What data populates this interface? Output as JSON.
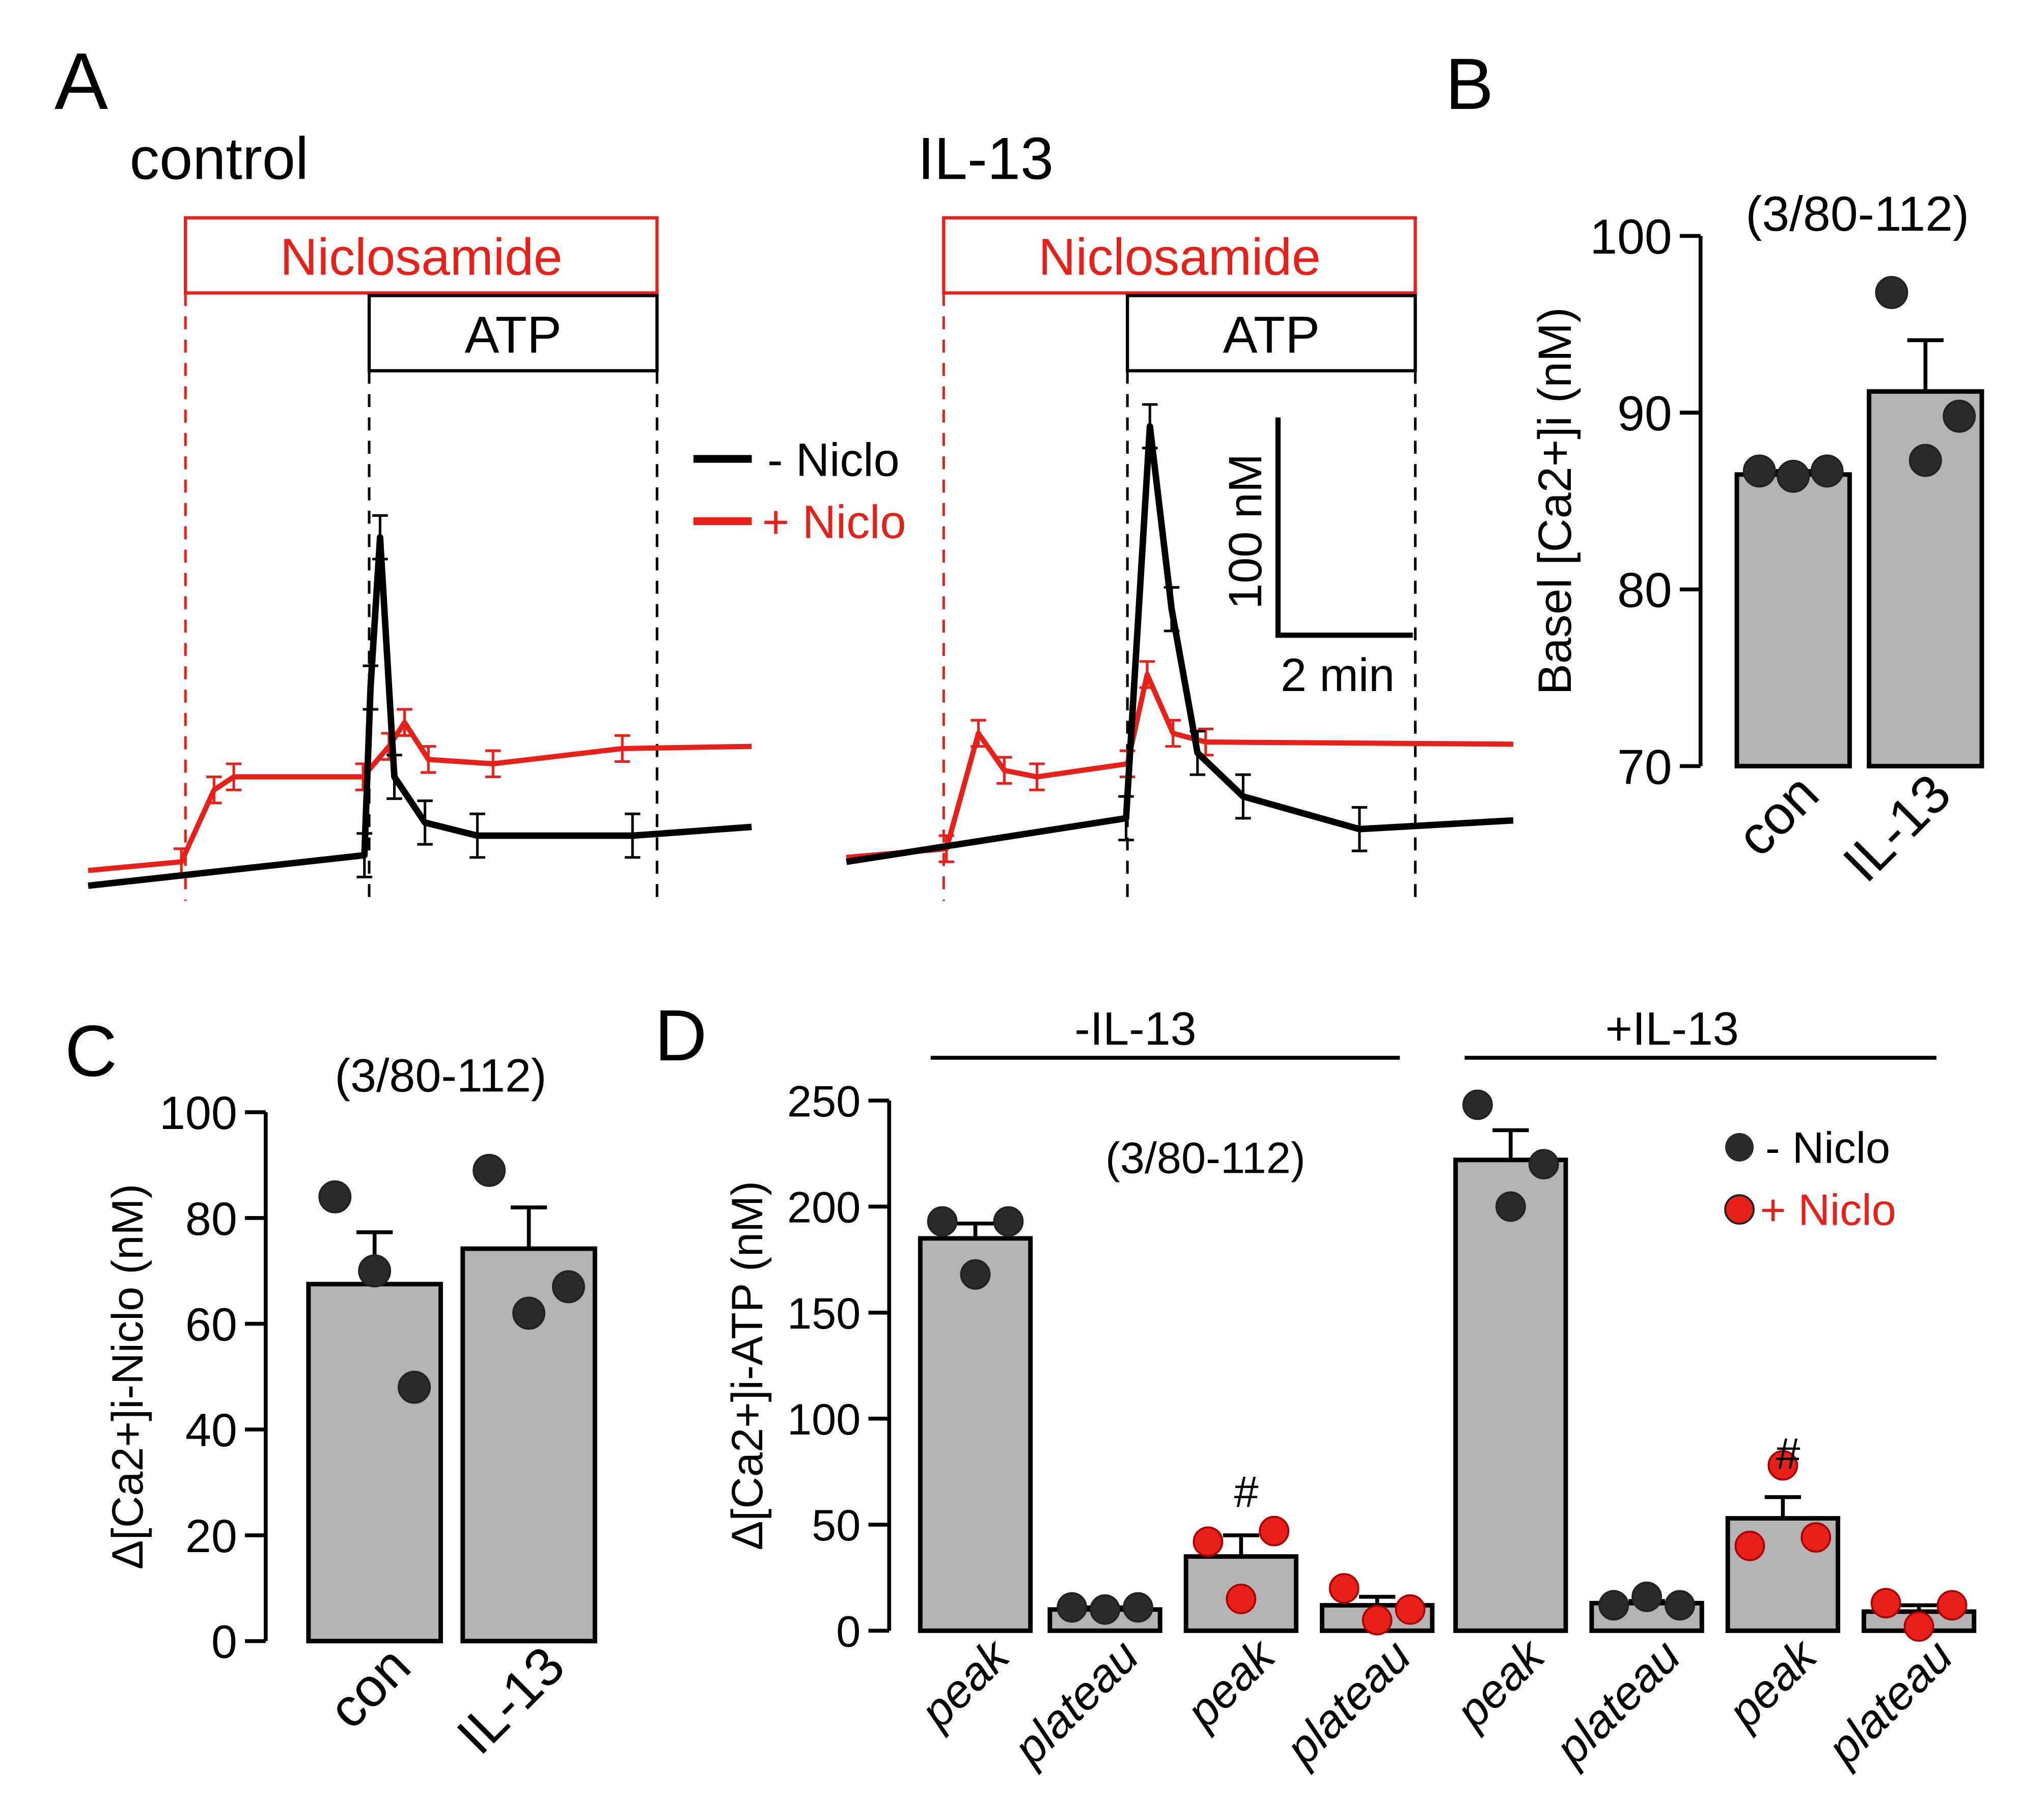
{
  "panel_labels": {
    "a": "A",
    "b": "B",
    "c": "C",
    "d": "D"
  },
  "colors": {
    "black": "#000000",
    "red": "#e8201a",
    "bar": "#b3b3b3",
    "dot": "#2b2b2b"
  },
  "chart_data": [
    {
      "type": "line",
      "panel": "A",
      "units": {
        "x": "min",
        "y": "nM (relative)"
      },
      "treatment_labels": {
        "niclo": "Niclosamide",
        "atp": "ATP"
      },
      "legend": {
        "minus": "- Niclo",
        "plus": "+ Niclo",
        "placement": "center"
      },
      "scale_bar": {
        "y_label": "100 nM",
        "x_label": "2 min",
        "y_value": 100,
        "x_value": 2
      },
      "subplots": [
        {
          "title": "control",
          "niclo_start": 1.43,
          "atp_start": 4.13,
          "end": 8.36,
          "series": [
            {
              "name": "- Niclo",
              "color": "black",
              "t": [
                0,
                4.06,
                4.15,
                4.29,
                4.5,
                4.95,
                5.72,
                8.0,
                9.75
              ],
              "y": [
                4,
                18,
                95,
                164,
                54,
                33,
                27,
                27,
                31
              ]
            },
            {
              "name": "+ Niclo",
              "color": "red",
              "t": [
                0,
                1.37,
                1.85,
                2.14,
                4.04,
                4.42,
                4.65,
                5.0,
                5.95,
                7.85,
                9.75
              ],
              "y": [
                11,
                15,
                48,
                54,
                54,
                68,
                79,
                62,
                60,
                67,
                68
              ]
            }
          ]
        },
        {
          "title": "IL-13",
          "niclo_start": 1.43,
          "atp_start": 4.13,
          "end": 8.36,
          "series": [
            {
              "name": "- Niclo",
              "color": "black",
              "t": [
                0,
                4.11,
                4.46,
                4.78,
                5.16,
                5.83,
                7.54,
                9.8
              ],
              "y": [
                15,
                35,
                215,
                131,
                65,
                45,
                30,
                34
              ]
            },
            {
              "name": "+ Niclo",
              "color": "red",
              "t": [
                0,
                1.47,
                1.94,
                2.32,
                2.8,
                4.13,
                4.42,
                4.8,
                5.28,
                9.8
              ],
              "y": [
                17,
                21,
                74,
                57,
                54,
                60,
                101,
                74,
                70,
                69
              ]
            }
          ]
        }
      ]
    },
    {
      "type": "bar",
      "panel": "B",
      "title": "(3/80-112)",
      "ylabel": "Basel [Ca2+]i (nM)",
      "ylim": [
        70,
        100
      ],
      "yticks": [
        "70",
        "80",
        "90",
        "100"
      ],
      "categories": [
        "con",
        "IL-13"
      ],
      "values": [
        86.5,
        91.2
      ],
      "errors": [
        0.2,
        2.9
      ],
      "points": [
        [
          86.7,
          86.4,
          86.7
        ],
        [
          96.8,
          87.3,
          89.8
        ]
      ]
    },
    {
      "type": "bar",
      "panel": "C",
      "title": "(3/80-112)",
      "ylabel": "Δ[Ca2+]i-Niclo (nM)",
      "ylim": [
        0,
        100
      ],
      "yticks": [
        "0",
        "20",
        "40",
        "60",
        "80",
        "100"
      ],
      "categories": [
        "con",
        "IL-13"
      ],
      "values": [
        67.5,
        74.2
      ],
      "errors": [
        9.8,
        7.8
      ],
      "points": [
        [
          84,
          70,
          48
        ],
        [
          89,
          62,
          67
        ]
      ]
    },
    {
      "type": "bar",
      "panel": "D",
      "title": "(3/80-112)",
      "ylabel": "Δ[Ca2+]i-ATP  (nM)",
      "ylim": [
        0,
        250
      ],
      "yticks": [
        "0",
        "50",
        "100",
        "150",
        "200",
        "250"
      ],
      "groups": [
        "-IL-13",
        "+IL-13"
      ],
      "categories": [
        "peak",
        "plateau",
        "peak",
        "plateau",
        "peak",
        "plateau",
        "peak",
        "plateau"
      ],
      "niclo": [
        false,
        false,
        true,
        true,
        false,
        false,
        true,
        true
      ],
      "values": [
        185,
        10,
        35,
        12,
        222,
        13,
        53,
        9
      ],
      "errors": [
        7,
        1,
        10,
        4,
        14,
        1,
        10,
        3
      ],
      "points": [
        [
          193,
          168,
          193
        ],
        [
          11,
          10,
          11
        ],
        [
          42,
          15,
          47
        ],
        [
          20,
          5,
          10
        ],
        [
          248,
          200,
          220
        ],
        [
          12,
          16,
          12
        ],
        [
          40,
          78,
          44
        ],
        [
          13,
          2,
          12
        ]
      ],
      "annotations": [
        "",
        "",
        "#",
        "",
        "",
        "",
        "#",
        ""
      ],
      "legend": {
        "minus": "- Niclo",
        "plus": "+ Niclo",
        "placement": "top-right"
      }
    }
  ]
}
